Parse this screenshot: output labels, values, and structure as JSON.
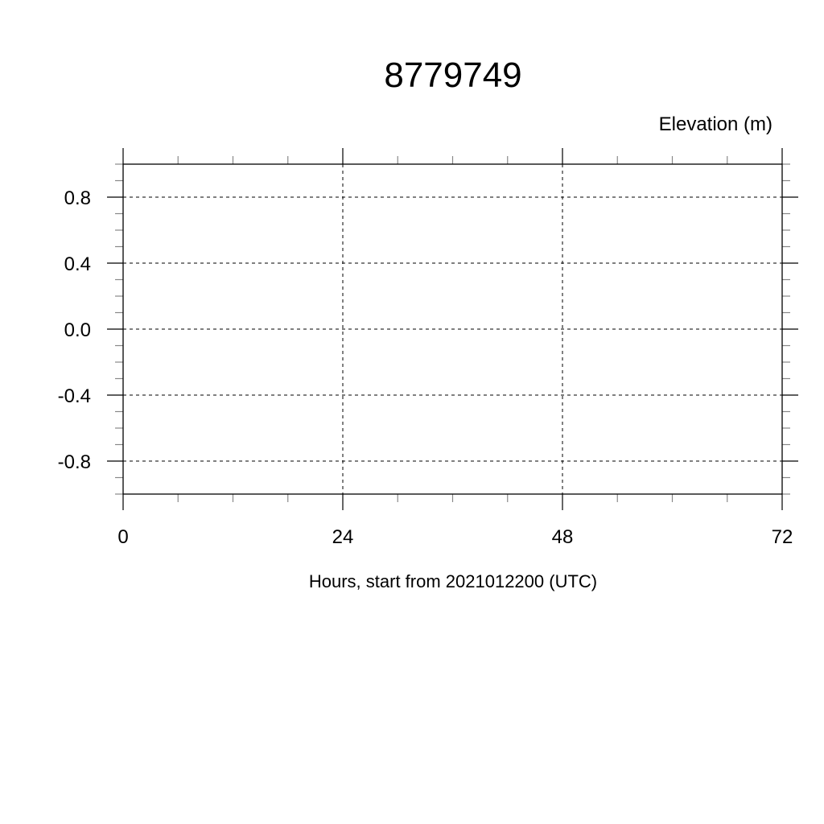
{
  "chart_data": {
    "type": "line",
    "title": "8779749",
    "ylabel": "Elevation (m)",
    "xlabel": "Hours, start from 2021012200 (UTC)",
    "xlim": [
      0,
      72
    ],
    "ylim": [
      -1.0,
      1.0
    ],
    "x_ticks": [
      0,
      24,
      48,
      72
    ],
    "x_tick_labels": [
      "0",
      "24",
      "48",
      "72"
    ],
    "x_minor_step": 6,
    "y_ticks": [
      0.8,
      0.4,
      0.0,
      -0.4,
      -0.8
    ],
    "y_tick_labels": [
      "0.8",
      "0.4",
      "0.0",
      "-0.4",
      "-0.8"
    ],
    "y_minor_step": 0.1,
    "grid": true,
    "grid_style": "dashed",
    "series": []
  }
}
